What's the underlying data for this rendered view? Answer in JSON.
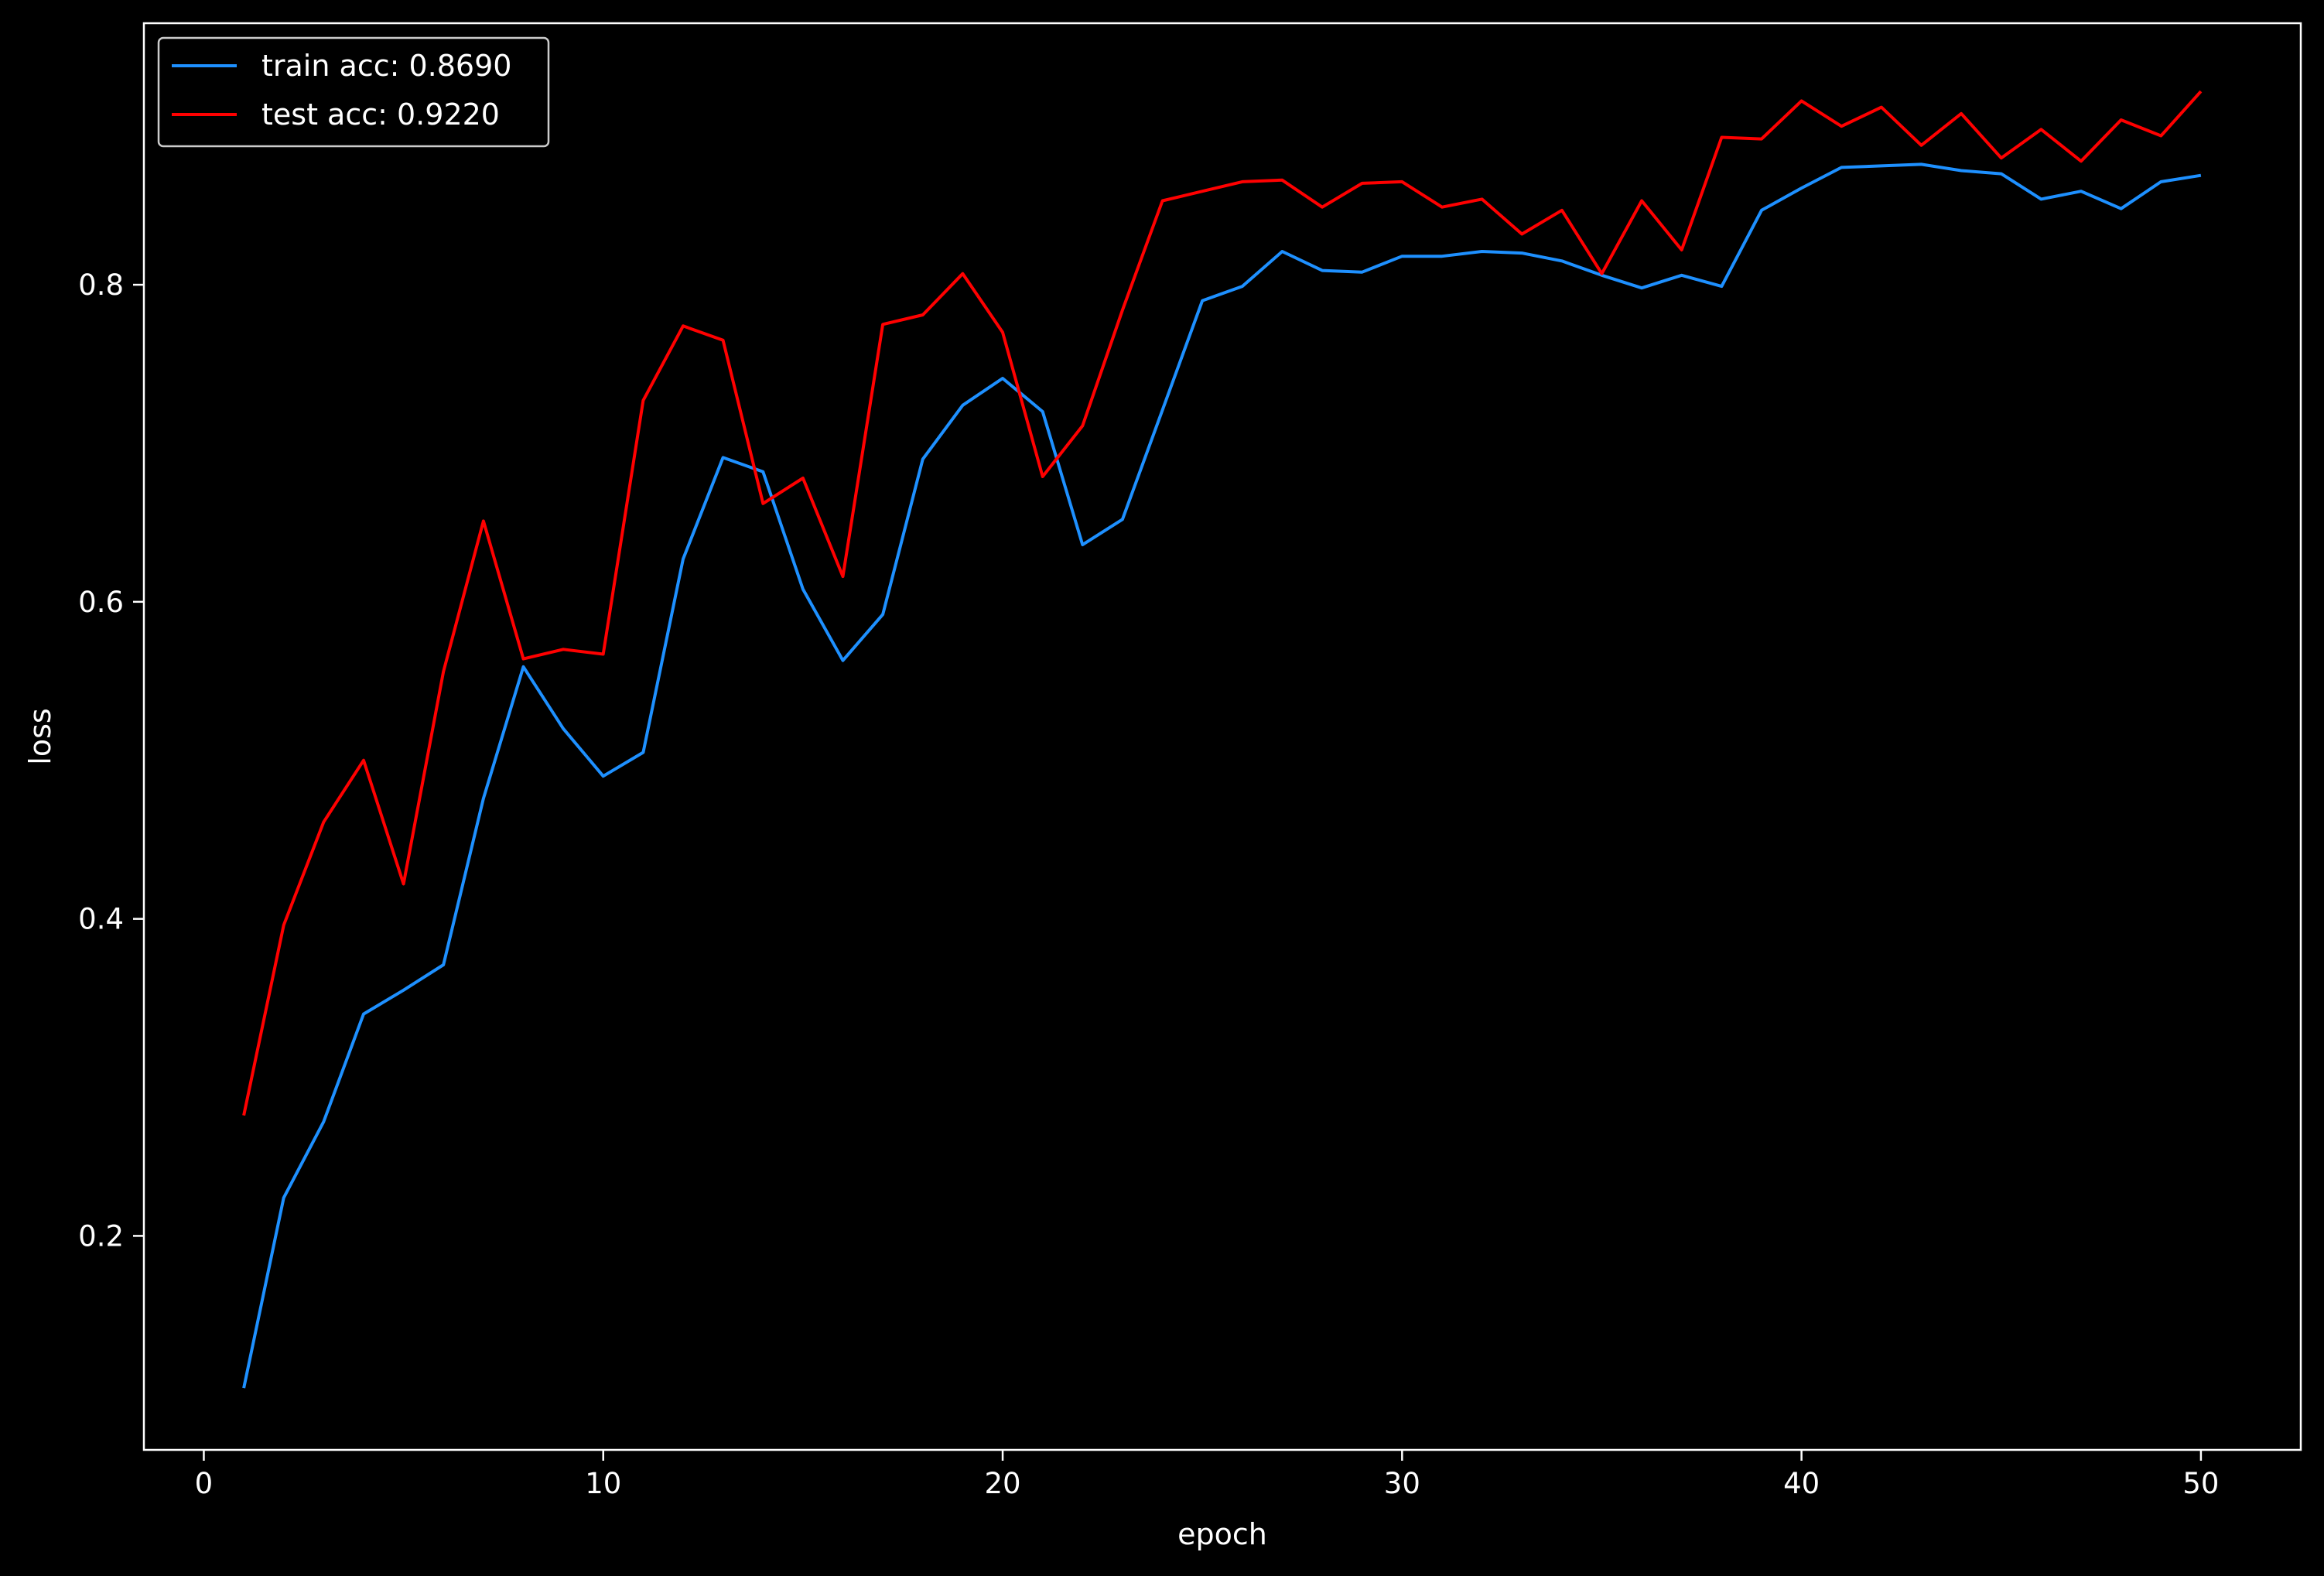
{
  "chart_data": {
    "type": "line",
    "title": "",
    "xlabel": "epoch",
    "ylabel": "loss",
    "xlim": [
      -1.5,
      52.5
    ],
    "ylim": [
      0.065,
      0.965
    ],
    "x_ticks": [
      0,
      10,
      20,
      30,
      40,
      50
    ],
    "y_ticks": [
      0.2,
      0.4,
      0.6,
      0.8
    ],
    "grid": false,
    "background": "#000000",
    "axis_color": "#ffffff",
    "legend_position": "top-left",
    "x": [
      1,
      2,
      3,
      4,
      5,
      6,
      7,
      8,
      9,
      10,
      11,
      12,
      13,
      14,
      15,
      16,
      17,
      18,
      19,
      20,
      21,
      22,
      23,
      24,
      25,
      26,
      27,
      28,
      29,
      30,
      31,
      32,
      33,
      34,
      35,
      36,
      37,
      38,
      39,
      40,
      41,
      42,
      43,
      44,
      45,
      46,
      47,
      48,
      49,
      50
    ],
    "series": [
      {
        "name": "train acc: 0.8690",
        "color": "#1e90ff",
        "values": [
          0.104,
          0.224,
          0.272,
          0.34,
          0.355,
          0.371,
          0.476,
          0.559,
          0.52,
          0.49,
          0.505,
          0.627,
          0.691,
          0.682,
          0.608,
          0.563,
          0.592,
          0.69,
          0.724,
          0.741,
          0.72,
          0.636,
          0.652,
          0.721,
          0.79,
          0.799,
          0.821,
          0.809,
          0.808,
          0.818,
          0.818,
          0.821,
          0.82,
          0.815,
          0.806,
          0.798,
          0.806,
          0.799,
          0.847,
          0.861,
          0.874,
          0.875,
          0.876,
          0.872,
          0.87,
          0.854,
          0.859,
          0.848,
          0.865,
          0.869
        ]
      },
      {
        "name": "test acc: 0.9220",
        "color": "#ff0000",
        "values": [
          0.276,
          0.396,
          0.461,
          0.5,
          0.422,
          0.556,
          0.651,
          0.564,
          0.57,
          0.567,
          0.727,
          0.774,
          0.765,
          0.662,
          0.678,
          0.616,
          0.775,
          0.781,
          0.807,
          0.77,
          0.679,
          0.711,
          0.784,
          0.853,
          0.859,
          0.865,
          0.866,
          0.849,
          0.864,
          0.865,
          0.849,
          0.854,
          0.832,
          0.847,
          0.807,
          0.853,
          0.822,
          0.893,
          0.892,
          0.916,
          0.9,
          0.912,
          0.888,
          0.908,
          0.88,
          0.898,
          0.878,
          0.904,
          0.894,
          0.922
        ]
      }
    ]
  }
}
